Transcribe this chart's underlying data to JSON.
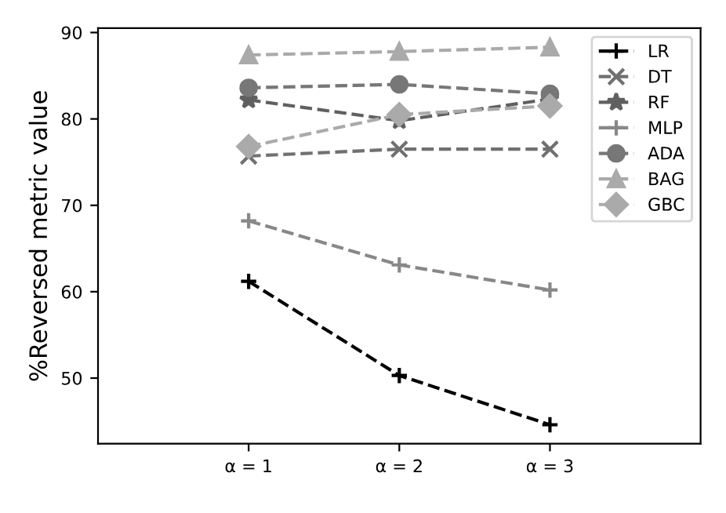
{
  "chart_data": {
    "type": "line",
    "ylabel": "%Reversed metric value",
    "x": [
      1,
      2,
      3
    ],
    "xlim": [
      0,
      4
    ],
    "xticks": [
      {
        "value": 1,
        "label": "α = 1"
      },
      {
        "value": 2,
        "label": "α = 2"
      },
      {
        "value": 3,
        "label": "α = 3"
      }
    ],
    "ylim": [
      42.4,
      90.5
    ],
    "yticks": [
      50,
      60,
      70,
      80,
      90
    ],
    "grid": false,
    "legend": "top right",
    "line_style": "dashed",
    "series": [
      {
        "name": "LR",
        "color": "#000000",
        "marker": "plus",
        "values": [
          61.2,
          50.3,
          44.6
        ]
      },
      {
        "name": "DT",
        "color": "#707070",
        "marker": "cross",
        "values": [
          75.7,
          76.5,
          76.5
        ]
      },
      {
        "name": "RF",
        "color": "#606060",
        "marker": "star",
        "values": [
          82.2,
          79.8,
          82.3
        ]
      },
      {
        "name": "MLP",
        "color": "#888888",
        "marker": "plus",
        "values": [
          68.2,
          63.1,
          60.2
        ]
      },
      {
        "name": "ADA",
        "color": "#777777",
        "marker": "circle",
        "values": [
          83.6,
          84.0,
          82.9
        ]
      },
      {
        "name": "BAG",
        "color": "#aaaaaa",
        "marker": "triangle",
        "values": [
          87.4,
          87.8,
          88.3
        ]
      },
      {
        "name": "GBC",
        "color": "#aaaaaa",
        "marker": "diamond",
        "values": [
          76.8,
          80.5,
          81.5
        ]
      }
    ]
  }
}
